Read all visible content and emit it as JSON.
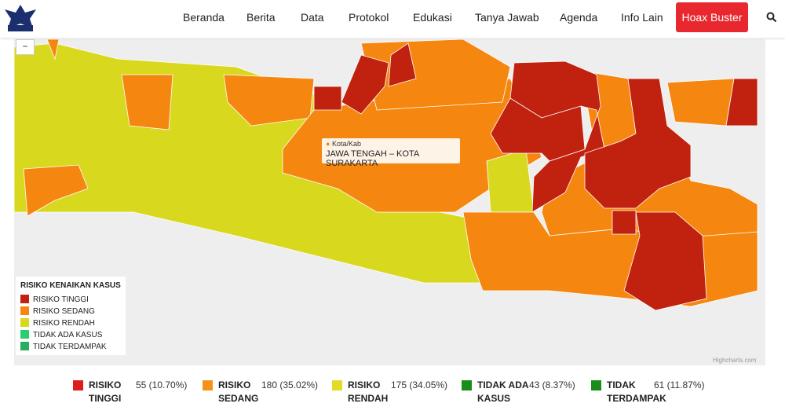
{
  "header": {
    "nav": [
      "Beranda",
      "Berita",
      "Data",
      "Protokol",
      "Edukasi",
      "Tanya Jawab",
      "Agenda",
      "Info Lain"
    ],
    "button": "Hoax Buster"
  },
  "map": {
    "zoom_out": "−",
    "tooltip": {
      "category": "Kota/Kab",
      "name": "JAWA TENGAH – KOTA SURAKARTA"
    },
    "legend": {
      "title": "RISIKO KENAIKAN KASUS",
      "items": [
        "RISIKO TINGGI",
        "RISIKO SEDANG",
        "RISIKO RENDAH",
        "TIDAK ADA KASUS",
        "TIDAK TERDAMPAK"
      ]
    },
    "credit": "Highcharts.com"
  },
  "summary": [
    {
      "label": "RISIKO TINGGI",
      "value": "55 (10.70%)"
    },
    {
      "label": "RISIKO SEDANG",
      "value": "180 (35.02%)"
    },
    {
      "label": "RISIKO RENDAH",
      "value": "175 (34.05%)"
    },
    {
      "label": "TIDAK ADA KASUS",
      "value": "43 (8.37%)"
    },
    {
      "label": "TIDAK TERDAMPAK",
      "value": "61 (11.87%)"
    }
  ]
}
